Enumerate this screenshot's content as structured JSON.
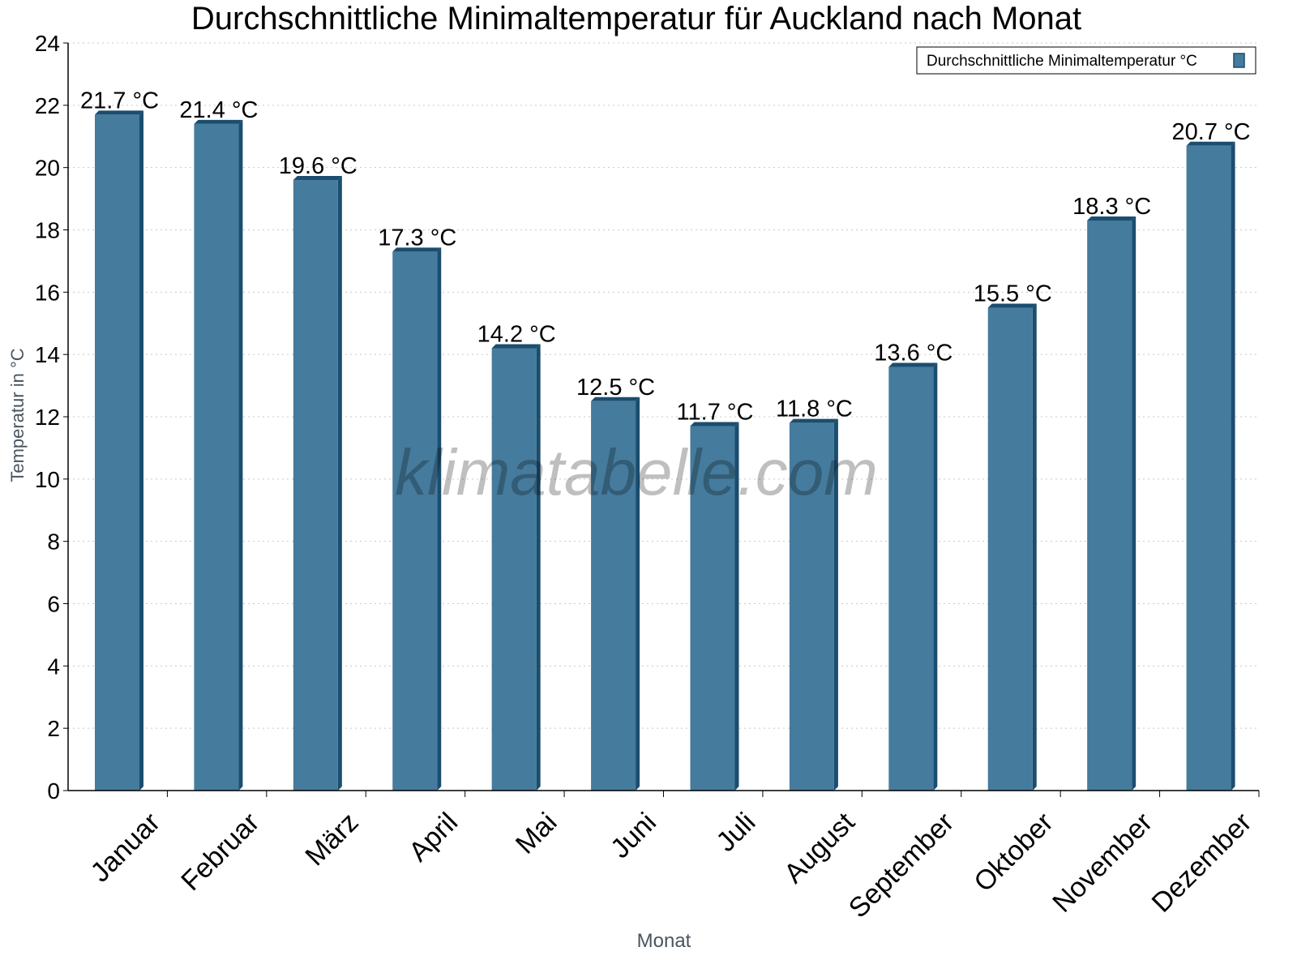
{
  "chart_data": {
    "type": "bar",
    "title": "Durchschnittliche Minimaltemperatur für Auckland nach Monat",
    "xlabel": "Monat",
    "ylabel": "Temperatur in °C",
    "categories": [
      "Januar",
      "Februar",
      "März",
      "April",
      "Mai",
      "Juni",
      "Juli",
      "August",
      "September",
      "Oktober",
      "November",
      "Dezember"
    ],
    "series": [
      {
        "name": "Durchschnittliche Minimaltemperatur °C",
        "values": [
          21.7,
          21.4,
          19.6,
          17.3,
          14.2,
          12.5,
          11.7,
          11.8,
          13.6,
          15.5,
          18.3,
          20.7
        ],
        "data_labels": [
          "21.7 °C",
          "21.4 °C",
          "19.6 °C",
          "17.3 °C",
          "14.2 °C",
          "12.5 °C",
          "11.7 °C",
          "11.8 °C",
          "13.6 °C",
          "15.5 °C",
          "18.3 °C",
          "20.7 °C"
        ],
        "color": "#457b9d",
        "side_color": "#1b4d6e"
      }
    ],
    "ylim": [
      0,
      24
    ],
    "yticks": [
      0,
      2,
      4,
      6,
      8,
      10,
      12,
      14,
      16,
      18,
      20,
      22,
      24
    ],
    "grid": true,
    "legend_position": "top-right",
    "watermark": "klimatabelle.com"
  }
}
